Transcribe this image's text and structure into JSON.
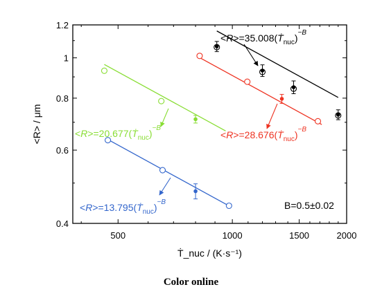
{
  "chart_data": {
    "type": "scatter",
    "x_scale": "log",
    "y_scale": "log",
    "xlim": [
      380,
      2000
    ],
    "ylim": [
      0.4,
      1.2
    ],
    "xlabel": "Ṫ_nuc / (K·s⁻¹)",
    "ylabel": "<R> / μm",
    "x_ticks": [
      500,
      1000,
      1500,
      2000
    ],
    "y_ticks": [
      0.4,
      0.6,
      0.8,
      1,
      1.2
    ],
    "x_tick_labels": [
      "500",
      "1000",
      "1500",
      "2000"
    ],
    "y_tick_labels": [
      "0.4",
      "0.6",
      "0.8",
      "1",
      "1.2"
    ],
    "grid": false,
    "series": [
      {
        "color": "#000000",
        "equation": "<R>=35.008(Ṫnuc)^−B",
        "fit": {
          "a": 35.008,
          "x": [
            910,
            1900
          ]
        },
        "open": {
          "x": [
            910,
            1200,
            1450,
            1900
          ],
          "y": [
            1.061,
            0.925,
            0.843,
            0.727
          ]
        },
        "measured": {
          "x": [
            910,
            1200,
            1450,
            1900
          ],
          "y": [
            1.065,
            0.932,
            0.85,
            0.73
          ],
          "err": [
            0.03,
            0.03,
            0.03,
            0.02
          ]
        }
      },
      {
        "color": "#ee3322",
        "equation": "<R>=28.676(Ṫnuc)^−B",
        "fit": {
          "a": 28.676,
          "x": [
            820,
            1720
          ]
        },
        "open": {
          "x": [
            820,
            1095,
            1680
          ],
          "y": [
            1.011,
            0.876,
            0.704
          ]
        },
        "measured": {
          "x": [
            1350
          ],
          "y": [
            0.797
          ],
          "err": [
            0.02
          ]
        }
      },
      {
        "color": "#88dd33",
        "equation": "<R>=20.677(Ṫnuc)^−B",
        "fit": {
          "a": 20.677,
          "x": [
            460,
            960
          ]
        },
        "open": {
          "x": [
            460,
            650
          ],
          "y": [
            0.931,
            0.787
          ]
        },
        "measured": {
          "x": [
            800
          ],
          "y": [
            0.712
          ],
          "err": [
            0.015
          ]
        }
      },
      {
        "color": "#3366cc",
        "equation": "<R>=13.795(Ṫnuc)^−B",
        "fit": {
          "a": 13.795,
          "x": [
            470,
            980
          ]
        },
        "open": {
          "x": [
            470,
            655,
            980
          ],
          "y": [
            0.634,
            0.537,
            0.441
          ]
        },
        "measured": {
          "x": [
            800
          ],
          "y": [
            0.478
          ],
          "err": [
            0.02
          ]
        }
      }
    ],
    "annotation": "B=0.5±0.02"
  },
  "caption": "Color online"
}
